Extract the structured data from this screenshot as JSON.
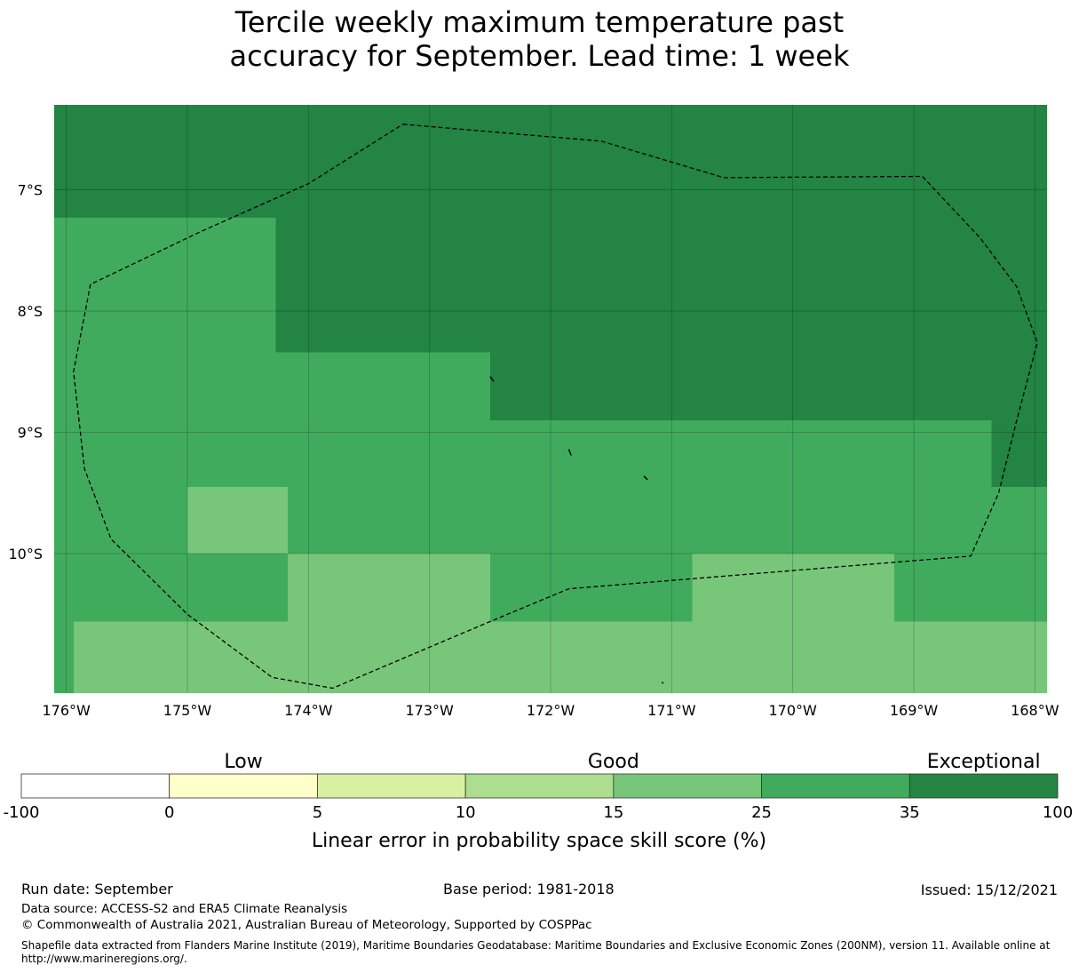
{
  "title": {
    "line1": "Tercile weekly maximum temperature past",
    "line2": "accuracy for September. Lead time: 1 week"
  },
  "map": {
    "lon_range": [
      -176.1,
      -167.9
    ],
    "lat_range": [
      -11.15,
      -6.3
    ],
    "x_ticks": [
      {
        "lon": -176,
        "label": "176°W"
      },
      {
        "lon": -175,
        "label": "175°W"
      },
      {
        "lon": -174,
        "label": "174°W"
      },
      {
        "lon": -173,
        "label": "173°W"
      },
      {
        "lon": -172,
        "label": "172°W"
      },
      {
        "lon": -171,
        "label": "171°W"
      },
      {
        "lon": -170,
        "label": "170°W"
      },
      {
        "lon": -169,
        "label": "169°W"
      },
      {
        "lon": -168,
        "label": "168°W"
      }
    ],
    "y_ticks": [
      {
        "lat": -7,
        "label": "7°S"
      },
      {
        "lat": -8,
        "label": "8°S"
      },
      {
        "lat": -9,
        "label": "9°S"
      },
      {
        "lat": -10,
        "label": "10°S"
      }
    ],
    "cells": [
      {
        "lon0": -176.1,
        "lon1": -167.9,
        "lat0": -7.23,
        "lat1": -6.3,
        "value": 40
      },
      {
        "lon0": -174.27,
        "lon1": -167.9,
        "lat0": -8.34,
        "lat1": -7.23,
        "value": 40
      },
      {
        "lon0": -176.1,
        "lon1": -174.27,
        "lat0": -8.34,
        "lat1": -7.23,
        "value": 30
      },
      {
        "lon0": -176.1,
        "lon1": -172.5,
        "lat0": -8.9,
        "lat1": -8.34,
        "value": 30
      },
      {
        "lon0": -172.5,
        "lon1": -167.9,
        "lat0": -8.9,
        "lat1": -8.34,
        "value": 40
      },
      {
        "lon0": -176.1,
        "lon1": -168.36,
        "lat0": -9.45,
        "lat1": -8.9,
        "value": 30
      },
      {
        "lon0": -168.36,
        "lon1": -167.9,
        "lat0": -9.45,
        "lat1": -8.9,
        "value": 40
      },
      {
        "lon0": -176.1,
        "lon1": -167.9,
        "lat0": -10.0,
        "lat1": -9.45,
        "value": 30
      },
      {
        "lon0": -175.0,
        "lon1": -174.17,
        "lat0": -10.0,
        "lat1": -9.45,
        "value": 20
      },
      {
        "lon0": -176.1,
        "lon1": -174.17,
        "lat0": -10.56,
        "lat1": -10.0,
        "value": 30
      },
      {
        "lon0": -174.17,
        "lon1": -172.5,
        "lat0": -10.56,
        "lat1": -10.0,
        "value": 20
      },
      {
        "lon0": -172.5,
        "lon1": -170.83,
        "lat0": -10.56,
        "lat1": -10.0,
        "value": 30
      },
      {
        "lon0": -170.83,
        "lon1": -169.16,
        "lat0": -10.56,
        "lat1": -10.0,
        "value": 20
      },
      {
        "lon0": -169.16,
        "lon1": -167.9,
        "lat0": -10.56,
        "lat1": -10.0,
        "value": 30
      },
      {
        "lon0": -176.1,
        "lon1": -175.94,
        "lat0": -11.15,
        "lat1": -10.56,
        "value": 30
      },
      {
        "lon0": -175.94,
        "lon1": -167.9,
        "lat0": -11.15,
        "lat1": -10.56,
        "value": 20
      }
    ],
    "eez_boundary": [
      [
        -173.22,
        -6.46
      ],
      [
        -171.58,
        -6.6
      ],
      [
        -170.57,
        -6.9
      ],
      [
        -168.93,
        -6.89
      ],
      [
        -168.45,
        -7.4
      ],
      [
        -168.15,
        -7.8
      ],
      [
        -167.98,
        -8.26
      ],
      [
        -168.15,
        -8.9
      ],
      [
        -168.3,
        -9.5
      ],
      [
        -168.53,
        -10.02
      ],
      [
        -171.85,
        -10.29
      ],
      [
        -172.5,
        -10.56
      ],
      [
        -173.8,
        -11.11
      ],
      [
        -174.3,
        -11.02
      ],
      [
        -175.0,
        -10.5
      ],
      [
        -175.63,
        -9.88
      ],
      [
        -175.85,
        -9.3
      ],
      [
        -175.94,
        -8.5
      ],
      [
        -175.8,
        -7.78
      ],
      [
        -174.9,
        -7.35
      ],
      [
        -174.0,
        -6.95
      ],
      [
        -173.22,
        -6.46
      ]
    ],
    "islands": [
      [
        [
          -172.5,
          -8.54
        ],
        [
          -172.47,
          -8.58
        ]
      ],
      [
        [
          -171.85,
          -9.14
        ],
        [
          -171.83,
          -9.19
        ]
      ],
      [
        [
          -171.23,
          -9.36
        ],
        [
          -171.2,
          -9.39
        ]
      ],
      [
        [
          -171.08,
          -11.06
        ],
        [
          -171.07,
          -11.07
        ]
      ]
    ]
  },
  "colorbar": {
    "categories": [
      {
        "label": "Low",
        "value": 2.5
      },
      {
        "label": "Good",
        "value": 15
      },
      {
        "label": "Exceptional",
        "value": 67.5
      }
    ],
    "boundaries": [
      "-100",
      "0",
      "5",
      "10",
      "15",
      "25",
      "35",
      "100"
    ],
    "colors": [
      "#ffffff",
      "#ffffcc",
      "#d9f0a3",
      "#addd8e",
      "#78c679",
      "#41ab5d",
      "#238443"
    ],
    "title": "Linear error in probability space skill score (%)"
  },
  "footer": {
    "run_date": "Run date: September",
    "base_period": "Base period: 1981-2018",
    "issued": "Issued: 15/12/2021",
    "data_source": "Data source: ACCESS-S2 and ERA5 Climate Reanalysis",
    "copyright": "© Commonwealth of Australia 2021, Australian Bureau of Meteorology, Supported by COSPPac",
    "shapefile": "Shapefile data extracted from Flanders Marine Institute (2019), Maritime Boundaries Geodatabase: Maritime Boundaries and Exclusive Economic Zones (200NM), version 11. Available online at http://www.marineregions.org/."
  }
}
